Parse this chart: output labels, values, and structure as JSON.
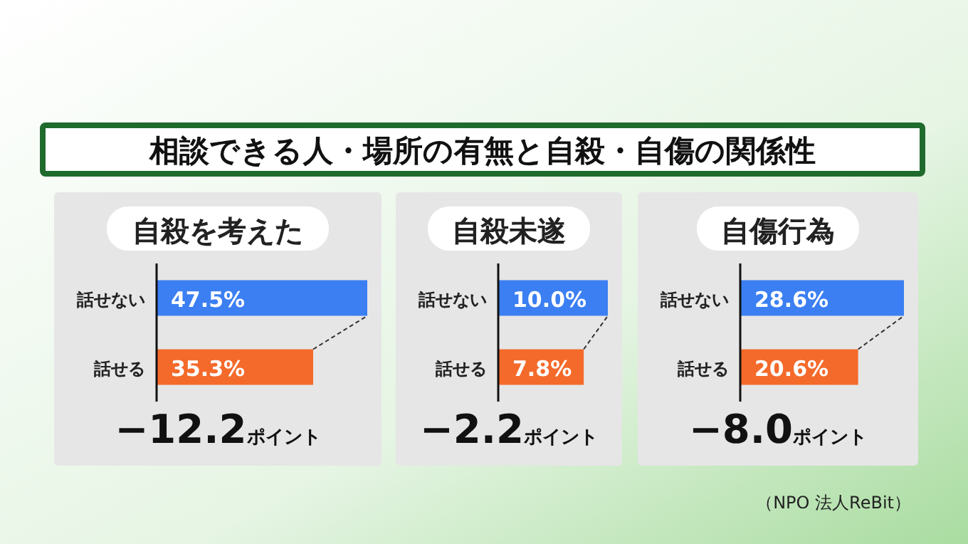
{
  "chart_data": [
    {
      "type": "bar",
      "orientation": "horizontal",
      "subtitle": "相談できる人・場所の有無と自殺・自傷の関係性",
      "title": "自殺を考えた",
      "categories": [
        "話せない",
        "話せる"
      ],
      "values": [
        47.5,
        35.3
      ],
      "colors": [
        "#3b7ff2",
        "#f46a2a"
      ],
      "value_labels": [
        "47.5%",
        "35.3%"
      ],
      "annotations": [
        "−12.2ポイント"
      ]
    },
    {
      "type": "bar",
      "orientation": "horizontal",
      "title": "自殺未遂",
      "categories": [
        "話せない",
        "話せる"
      ],
      "values": [
        10.0,
        7.8
      ],
      "colors": [
        "#3b7ff2",
        "#f46a2a"
      ],
      "value_labels": [
        "10.0%",
        "7.8%"
      ],
      "annotations": [
        "−2.2ポイント"
      ]
    },
    {
      "type": "bar",
      "orientation": "horizontal",
      "title": "自傷行為",
      "categories": [
        "話せない",
        "話せる"
      ],
      "values": [
        28.6,
        20.6
      ],
      "colors": [
        "#3b7ff2",
        "#f46a2a"
      ],
      "value_labels": [
        "28.6%",
        "20.6%"
      ],
      "annotations": [
        "−8.0ポイント",
        "（NPO 法人ReBit）"
      ]
    }
  ]
}
